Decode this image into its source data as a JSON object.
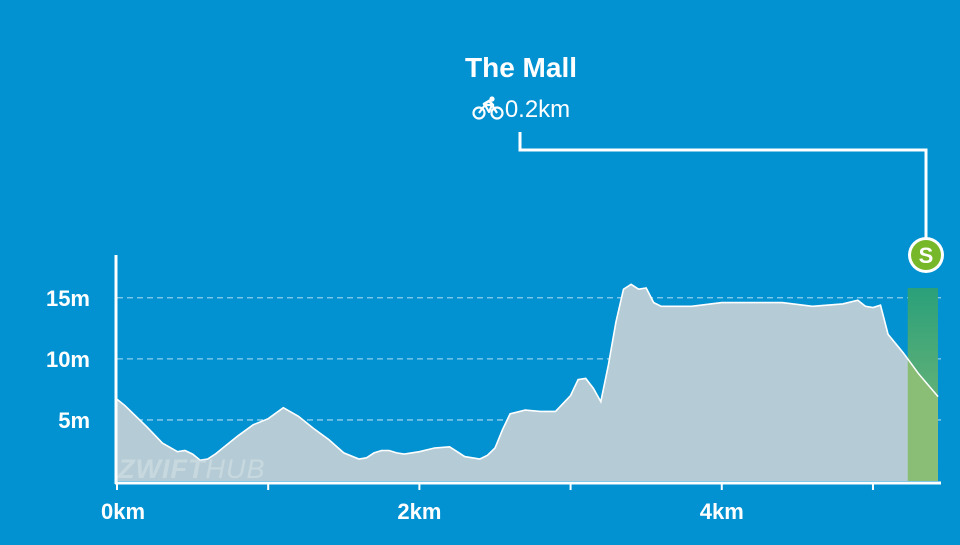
{
  "segment": {
    "name": "The Mall",
    "distance": "0.2km",
    "badge_letter": "S"
  },
  "watermark": {
    "part1": "ZWIFT",
    "part2": "HUB"
  },
  "colors": {
    "background": "#0291d1",
    "profile_fill": "#b5ccd6",
    "segment_fill": "#8abd75",
    "segment_fill_top": "#2aa07a",
    "badge": "#76b82a",
    "axis": "#ffffff"
  },
  "icons": {
    "distance": "bicycle-icon",
    "badge": "sprint-badge-icon"
  },
  "chart_data": {
    "type": "area",
    "title": "",
    "xlabel": "",
    "ylabel": "",
    "xlim": [
      0,
      5.45
    ],
    "ylim": [
      0,
      18.5
    ],
    "grid": true,
    "x_ticks": [
      0,
      1,
      2,
      3,
      4,
      5
    ],
    "x_tick_labels": [
      {
        "x": 0,
        "label": "0km"
      },
      {
        "x": 2,
        "label": "2km"
      },
      {
        "x": 4,
        "label": "4km"
      }
    ],
    "y_tick_labels": [
      {
        "y": 5,
        "label": "5m"
      },
      {
        "y": 10,
        "label": "10m"
      },
      {
        "y": 15,
        "label": "15m"
      }
    ],
    "highlight": {
      "start": 5.23,
      "end": 5.43,
      "label": "The Mall"
    },
    "series": [
      {
        "x": [
          0,
          0.05,
          0.1,
          0.2,
          0.3,
          0.4,
          0.45,
          0.5,
          0.55,
          0.6,
          0.65,
          0.7,
          0.8,
          0.9,
          1.0,
          1.1,
          1.2,
          1.3,
          1.4,
          1.5,
          1.6,
          1.65,
          1.7,
          1.75,
          1.8,
          1.85,
          1.9,
          2.0,
          2.1,
          2.2,
          2.25,
          2.3,
          2.35,
          2.4,
          2.45,
          2.5,
          2.55,
          2.6,
          2.7,
          2.8,
          2.9,
          3.0,
          3.05,
          3.1,
          3.15,
          3.2,
          3.25,
          3.3,
          3.35,
          3.4,
          3.45,
          3.5,
          3.55,
          3.6,
          3.8,
          4.0,
          4.2,
          4.4,
          4.6,
          4.8,
          4.9,
          4.95,
          5.0,
          5.05,
          5.1,
          5.2,
          5.3,
          5.43
        ],
        "y": [
          6.7,
          6.2,
          5.6,
          4.4,
          3.1,
          2.4,
          2.5,
          2.2,
          1.7,
          1.8,
          2.2,
          2.7,
          3.7,
          4.6,
          5.1,
          6.0,
          5.3,
          4.3,
          3.4,
          2.3,
          1.8,
          1.9,
          2.3,
          2.5,
          2.5,
          2.3,
          2.2,
          2.4,
          2.7,
          2.8,
          2.4,
          2.0,
          1.9,
          1.8,
          2.1,
          2.7,
          4.2,
          5.5,
          5.8,
          5.7,
          5.7,
          7.0,
          8.3,
          8.4,
          7.6,
          6.5,
          9.5,
          13.0,
          15.7,
          16.1,
          15.7,
          15.8,
          14.6,
          14.3,
          14.3,
          14.6,
          14.6,
          14.6,
          14.3,
          14.5,
          14.8,
          14.3,
          14.2,
          14.4,
          12.0,
          10.5,
          8.8,
          6.9
        ]
      }
    ]
  }
}
